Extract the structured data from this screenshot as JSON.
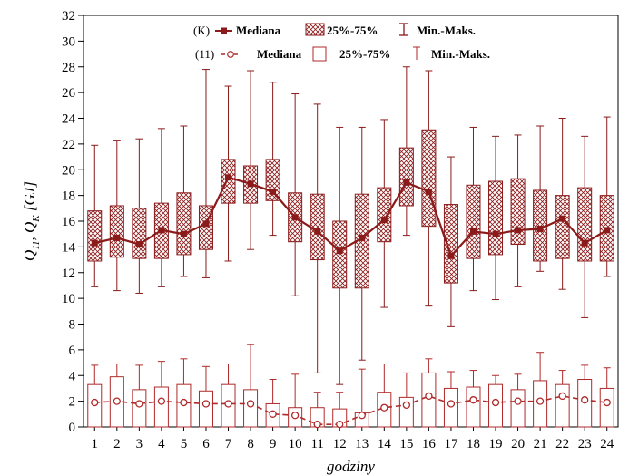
{
  "chart_data": {
    "type": "box",
    "xlabel": "godziny",
    "ylabel_parts": [
      "Q",
      "11",
      ", Q",
      "K",
      " [GJ]"
    ],
    "ylim": [
      0,
      32
    ],
    "yticks": [
      0,
      2,
      4,
      6,
      8,
      10,
      12,
      14,
      16,
      18,
      20,
      22,
      24,
      26,
      28,
      30,
      32
    ],
    "categories": [
      "1",
      "2",
      "3",
      "4",
      "5",
      "6",
      "7",
      "8",
      "9",
      "10",
      "11",
      "12",
      "13",
      "14",
      "15",
      "16",
      "17",
      "18",
      "19",
      "20",
      "21",
      "22",
      "23",
      "24"
    ],
    "grid": false,
    "colors": {
      "K": "#8b1a1a",
      "eleven": "#b02a2a"
    },
    "legend": {
      "rows": [
        {
          "tag": "(K)",
          "median": "Mediana",
          "box": "25%-75%",
          "whisker": "Min.-Maks."
        },
        {
          "tag": "(11)",
          "median": "Mediana",
          "box": "25%-75%",
          "whisker": "Min.-Maks."
        }
      ]
    },
    "series": [
      {
        "name": "K",
        "median": [
          14.3,
          14.7,
          14.2,
          15.3,
          15.0,
          15.8,
          19.4,
          18.9,
          18.3,
          16.3,
          15.2,
          13.7,
          14.7,
          16.1,
          19.0,
          18.3,
          13.3,
          15.2,
          15.0,
          15.3,
          15.4,
          16.2,
          14.3,
          15.3
        ],
        "q1": [
          12.9,
          13.2,
          13.1,
          13.1,
          13.4,
          13.8,
          17.4,
          17.4,
          17.6,
          14.4,
          13.0,
          10.8,
          10.8,
          14.4,
          17.2,
          15.6,
          11.2,
          13.1,
          13.4,
          14.2,
          12.9,
          13.1,
          12.9,
          12.9
        ],
        "q3": [
          16.8,
          17.2,
          17.0,
          17.4,
          18.2,
          17.2,
          20.8,
          20.3,
          20.8,
          18.2,
          18.1,
          16.0,
          18.1,
          18.6,
          21.7,
          23.1,
          17.3,
          18.8,
          19.1,
          19.3,
          18.4,
          18.0,
          18.6,
          18.0
        ],
        "min": [
          10.9,
          10.6,
          10.4,
          10.9,
          11.7,
          11.6,
          12.9,
          13.8,
          14.9,
          10.2,
          4.2,
          3.3,
          5.2,
          9.3,
          14.9,
          9.4,
          7.8,
          10.6,
          9.9,
          10.9,
          12.1,
          10.7,
          8.5,
          11.7
        ],
        "max": [
          21.9,
          22.3,
          22.4,
          23.2,
          23.4,
          27.8,
          26.5,
          27.7,
          26.8,
          25.9,
          25.1,
          23.3,
          23.3,
          23.9,
          28.0,
          27.7,
          21.0,
          23.3,
          22.6,
          22.7,
          23.4,
          24.0,
          22.6,
          24.1
        ]
      },
      {
        "name": "11",
        "median": [
          1.9,
          2.0,
          1.8,
          2.0,
          1.9,
          1.8,
          1.8,
          1.8,
          1.0,
          0.9,
          0.2,
          0.2,
          0.9,
          1.5,
          1.7,
          2.4,
          1.8,
          2.1,
          1.9,
          2.0,
          2.0,
          2.4,
          2.1,
          1.9
        ],
        "q1": [
          0,
          0,
          0,
          0,
          0,
          0,
          0,
          0,
          0,
          0,
          0,
          0,
          0,
          0,
          0,
          0,
          0,
          0,
          0,
          0,
          0,
          0,
          0,
          0
        ],
        "q3": [
          3.3,
          3.9,
          2.9,
          3.1,
          3.3,
          2.8,
          3.3,
          2.9,
          1.8,
          1.5,
          1.5,
          1.4,
          1.1,
          2.7,
          2.3,
          4.2,
          3.0,
          3.1,
          3.3,
          2.9,
          3.6,
          3.3,
          3.7,
          3.0
        ],
        "min": [
          0,
          0,
          0,
          0,
          0,
          0,
          0,
          0,
          0,
          0,
          0,
          0,
          0,
          0,
          0,
          0,
          0,
          0,
          0,
          0,
          0,
          0,
          0,
          0
        ],
        "max": [
          4.8,
          4.9,
          4.8,
          5.1,
          5.3,
          4.7,
          4.9,
          6.4,
          3.7,
          4.1,
          2.7,
          2.7,
          4.5,
          4.9,
          4.2,
          5.3,
          4.3,
          4.4,
          4.0,
          4.1,
          5.8,
          4.4,
          4.8,
          4.6
        ]
      }
    ]
  }
}
